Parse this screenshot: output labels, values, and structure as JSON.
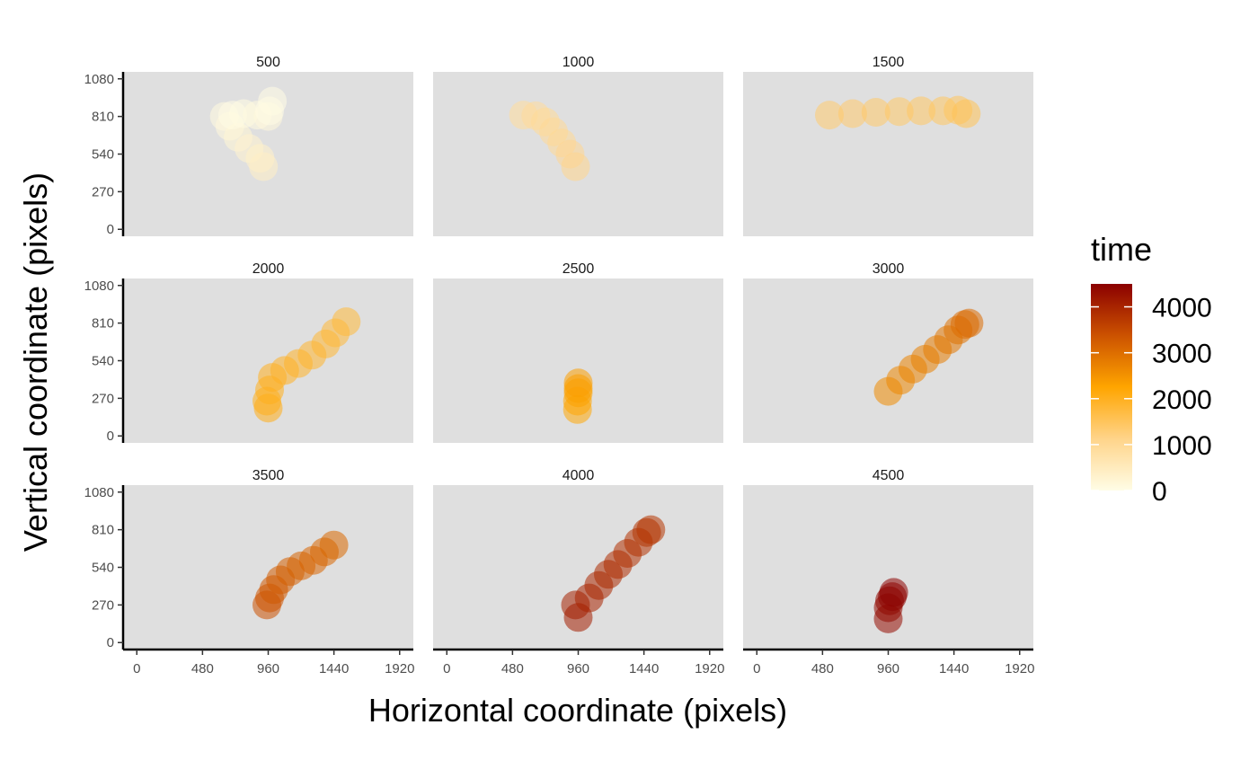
{
  "chart_data": {
    "type": "scatter",
    "facet_variable": "time_bin",
    "xlabel": "Horizontal coordinate (pixels)",
    "ylabel": "Vertical coordinate (pixels)",
    "xlim": [
      -100,
      2020
    ],
    "ylim": [
      -50,
      1130
    ],
    "x_ticks": [
      0,
      480,
      960,
      1440,
      1920
    ],
    "y_ticks": [
      0,
      270,
      540,
      810,
      1080
    ],
    "x_tick_labels": [
      "0",
      "480",
      "960",
      "1440",
      "1920"
    ],
    "y_tick_labels": [
      "0",
      "270",
      "540",
      "810",
      "1080"
    ],
    "legend": {
      "title": "time",
      "min": 0,
      "max": 4500,
      "breaks": [
        0,
        1000,
        2000,
        3000,
        4000
      ],
      "break_labels": [
        "0",
        "1000",
        "2000",
        "3000",
        "4000"
      ],
      "colors": [
        "#fffde6",
        "#ffd48a",
        "#ffa500",
        "#cc5200",
        "#8b0000"
      ]
    },
    "facets": [
      {
        "title": "500",
        "points": [
          {
            "x": 640,
            "y": 810,
            "t": 80
          },
          {
            "x": 680,
            "y": 740,
            "t": 150
          },
          {
            "x": 740,
            "y": 660,
            "t": 220
          },
          {
            "x": 820,
            "y": 580,
            "t": 290
          },
          {
            "x": 900,
            "y": 510,
            "t": 360
          },
          {
            "x": 925,
            "y": 450,
            "t": 420
          },
          {
            "x": 700,
            "y": 820,
            "t": 30
          },
          {
            "x": 780,
            "y": 830,
            "t": 60
          },
          {
            "x": 880,
            "y": 820,
            "t": 100
          },
          {
            "x": 960,
            "y": 810,
            "t": 140
          },
          {
            "x": 970,
            "y": 850,
            "t": 40
          },
          {
            "x": 990,
            "y": 920,
            "t": 20
          }
        ]
      },
      {
        "title": "1000",
        "points": [
          {
            "x": 560,
            "y": 820,
            "t": 900
          },
          {
            "x": 650,
            "y": 815,
            "t": 930
          },
          {
            "x": 720,
            "y": 770,
            "t": 960
          },
          {
            "x": 780,
            "y": 700,
            "t": 990
          },
          {
            "x": 840,
            "y": 620,
            "t": 1020
          },
          {
            "x": 900,
            "y": 540,
            "t": 1060
          },
          {
            "x": 940,
            "y": 450,
            "t": 1100
          }
        ]
      },
      {
        "title": "1500",
        "points": [
          {
            "x": 530,
            "y": 820,
            "t": 1350
          },
          {
            "x": 700,
            "y": 830,
            "t": 1380
          },
          {
            "x": 870,
            "y": 840,
            "t": 1400
          },
          {
            "x": 1040,
            "y": 845,
            "t": 1420
          },
          {
            "x": 1200,
            "y": 850,
            "t": 1440
          },
          {
            "x": 1360,
            "y": 850,
            "t": 1460
          },
          {
            "x": 1470,
            "y": 855,
            "t": 1500
          },
          {
            "x": 1530,
            "y": 830,
            "t": 1560
          }
        ]
      },
      {
        "title": "2000",
        "points": [
          {
            "x": 960,
            "y": 200,
            "t": 2060
          },
          {
            "x": 950,
            "y": 250,
            "t": 2040
          },
          {
            "x": 970,
            "y": 330,
            "t": 2020
          },
          {
            "x": 990,
            "y": 420,
            "t": 2000
          },
          {
            "x": 1080,
            "y": 470,
            "t": 1960
          },
          {
            "x": 1180,
            "y": 520,
            "t": 1920
          },
          {
            "x": 1280,
            "y": 580,
            "t": 1880
          },
          {
            "x": 1380,
            "y": 660,
            "t": 1840
          },
          {
            "x": 1450,
            "y": 740,
            "t": 1800
          },
          {
            "x": 1530,
            "y": 820,
            "t": 1780
          }
        ]
      },
      {
        "title": "2500",
        "points": [
          {
            "x": 955,
            "y": 190,
            "t": 2200
          },
          {
            "x": 955,
            "y": 250,
            "t": 2240
          },
          {
            "x": 960,
            "y": 310,
            "t": 2280
          },
          {
            "x": 960,
            "y": 340,
            "t": 2320
          },
          {
            "x": 960,
            "y": 380,
            "t": 2340
          }
        ]
      },
      {
        "title": "3000",
        "points": [
          {
            "x": 960,
            "y": 320,
            "t": 2600
          },
          {
            "x": 1050,
            "y": 400,
            "t": 2650
          },
          {
            "x": 1140,
            "y": 480,
            "t": 2700
          },
          {
            "x": 1230,
            "y": 550,
            "t": 2760
          },
          {
            "x": 1320,
            "y": 620,
            "t": 2820
          },
          {
            "x": 1400,
            "y": 690,
            "t": 2880
          },
          {
            "x": 1470,
            "y": 760,
            "t": 2950
          },
          {
            "x": 1520,
            "y": 800,
            "t": 3020
          },
          {
            "x": 1550,
            "y": 810,
            "t": 3060
          }
        ]
      },
      {
        "title": "3500",
        "points": [
          {
            "x": 950,
            "y": 270,
            "t": 3400
          },
          {
            "x": 970,
            "y": 320,
            "t": 3350
          },
          {
            "x": 1000,
            "y": 380,
            "t": 3300
          },
          {
            "x": 1050,
            "y": 450,
            "t": 3250
          },
          {
            "x": 1120,
            "y": 510,
            "t": 3200
          },
          {
            "x": 1200,
            "y": 550,
            "t": 3150
          },
          {
            "x": 1290,
            "y": 590,
            "t": 3120
          },
          {
            "x": 1370,
            "y": 650,
            "t": 3100
          },
          {
            "x": 1440,
            "y": 700,
            "t": 3080
          }
        ]
      },
      {
        "title": "4000",
        "points": [
          {
            "x": 940,
            "y": 270,
            "t": 4060
          },
          {
            "x": 960,
            "y": 180,
            "t": 4100
          },
          {
            "x": 1040,
            "y": 320,
            "t": 4020
          },
          {
            "x": 1110,
            "y": 410,
            "t": 3980
          },
          {
            "x": 1180,
            "y": 490,
            "t": 3940
          },
          {
            "x": 1250,
            "y": 560,
            "t": 3900
          },
          {
            "x": 1320,
            "y": 640,
            "t": 3860
          },
          {
            "x": 1400,
            "y": 720,
            "t": 3830
          },
          {
            "x": 1460,
            "y": 790,
            "t": 3800
          },
          {
            "x": 1490,
            "y": 810,
            "t": 3780
          }
        ]
      },
      {
        "title": "4500",
        "points": [
          {
            "x": 960,
            "y": 170,
            "t": 4350
          },
          {
            "x": 960,
            "y": 250,
            "t": 4380
          },
          {
            "x": 970,
            "y": 300,
            "t": 4410
          },
          {
            "x": 990,
            "y": 330,
            "t": 4450
          },
          {
            "x": 1000,
            "y": 360,
            "t": 4480
          }
        ]
      }
    ]
  }
}
